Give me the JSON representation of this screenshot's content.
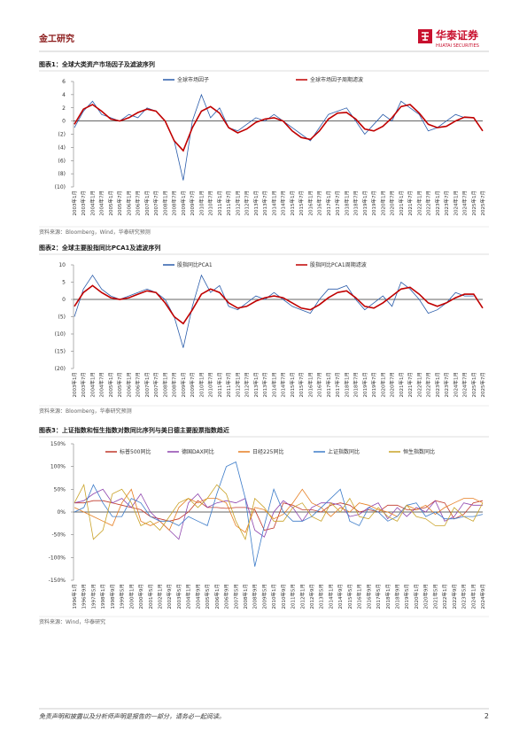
{
  "header": {
    "section": "金工研究",
    "brand": "华泰证券",
    "brand_en": "HUATAI SECURITIES"
  },
  "chart_data": [
    {
      "type": "line",
      "title": "图表1：全球大类资产市场因子及滤波序列",
      "source": "资料来源：Bloomberg，Wind，华泰研究预测",
      "categories": [
        "2003年1月",
        "2003年7月",
        "2004年1月",
        "2004年7月",
        "2005年1月",
        "2005年7月",
        "2006年1月",
        "2006年7月",
        "2007年1月",
        "2007年7月",
        "2008年1月",
        "2008年7月",
        "2009年1月",
        "2009年7月",
        "2010年1月",
        "2010年7月",
        "2011年1月",
        "2011年7月",
        "2012年1月",
        "2012年7月",
        "2013年1月",
        "2013年7月",
        "2014年1月",
        "2014年7月",
        "2015年1月",
        "2015年7月",
        "2016年1月",
        "2016年7月",
        "2017年1月",
        "2017年7月",
        "2018年1月",
        "2018年7月",
        "2019年1月",
        "2019年7月",
        "2020年1月",
        "2020年7月",
        "2021年1月",
        "2021年7月",
        "2022年1月",
        "2022年7月",
        "2023年1月",
        "2023年7月",
        "2024年1月",
        "2024年7月",
        "2025年1月",
        "2025年7月"
      ],
      "series": [
        {
          "name": "全球市场因子",
          "color": "#2a5caa",
          "values": [
            -1,
            1.5,
            3,
            1,
            0.5,
            0,
            1,
            0.5,
            2,
            1.5,
            0,
            -3,
            -9,
            0,
            4,
            0.5,
            2,
            -1,
            -1.5,
            -0.5,
            0.5,
            0,
            1,
            0,
            -1,
            -2,
            -3,
            -1,
            1,
            1.5,
            2,
            0,
            -2,
            -0.5,
            1,
            0,
            3,
            2,
            1,
            -1.5,
            -1,
            0,
            1,
            0.5,
            0.5,
            null
          ]
        },
        {
          "name": "全球市场因子周期滤波",
          "color": "#c00000",
          "values": [
            -0.5,
            1.8,
            2.5,
            1.5,
            0.3,
            0,
            0.5,
            1.3,
            1.8,
            1.5,
            0,
            -3,
            -4.5,
            -1,
            1.5,
            2.2,
            1.2,
            -1,
            -1.8,
            -1.2,
            -0.2,
            0.3,
            0.5,
            0,
            -1.5,
            -2.5,
            -2.8,
            -1.5,
            0.3,
            1.2,
            1.3,
            0.3,
            -1.2,
            -1.5,
            -0.8,
            0.5,
            2.2,
            2.5,
            1.2,
            -0.5,
            -1,
            -0.8,
            0,
            0.6,
            0.5,
            -1.5
          ]
        }
      ],
      "ylim": [
        -10,
        6
      ],
      "yticks": [
        6,
        4,
        2,
        0,
        {
          "value": -2,
          "label": "(2)"
        },
        {
          "value": -4,
          "label": "(4)"
        },
        {
          "value": -6,
          "label": "(6)"
        },
        {
          "value": -8,
          "label": "(8)"
        },
        {
          "value": -10,
          "label": "(10)"
        }
      ]
    },
    {
      "type": "line",
      "title": "图表2：全球主要股指同比PCA1及滤波序列",
      "source": "资料来源：Bloomberg，华泰研究预测",
      "categories": [
        "2003年1月",
        "2003年7月",
        "2004年1月",
        "2004年7月",
        "2005年1月",
        "2005年7月",
        "2006年1月",
        "2006年7月",
        "2007年1月",
        "2007年7月",
        "2008年1月",
        "2008年7月",
        "2009年1月",
        "2009年7月",
        "2010年1月",
        "2010年7月",
        "2011年1月",
        "2011年7月",
        "2012年1月",
        "2012年7月",
        "2013年1月",
        "2013年7月",
        "2014年1月",
        "2014年7月",
        "2015年1月",
        "2015年7月",
        "2016年1月",
        "2016年7月",
        "2017年1月",
        "2017年7月",
        "2018年1月",
        "2018年7月",
        "2019年1月",
        "2019年7月",
        "2020年1月",
        "2020年7月",
        "2021年1月",
        "2021年7月",
        "2022年1月",
        "2022年7月",
        "2023年1月",
        "2023年7月",
        "2024年1月",
        "2024年7月",
        "2025年1月",
        "2025年7月"
      ],
      "series": [
        {
          "name": "股指同比PCA1",
          "color": "#2a5caa",
          "values": [
            -5,
            3,
            7,
            3,
            1,
            0,
            1,
            2,
            3,
            2,
            0,
            -5,
            -14,
            -2,
            7,
            2,
            4,
            -2,
            -3,
            -1,
            1,
            0,
            2,
            0,
            -2,
            -3,
            -4,
            0,
            3,
            3,
            4,
            0,
            -3,
            -1,
            1,
            -2,
            5,
            3,
            0,
            -4,
            -3,
            -1,
            2,
            1,
            1,
            null
          ]
        },
        {
          "name": "股指同比PCA1周期滤波",
          "color": "#c00000",
          "values": [
            -2,
            2,
            4,
            2,
            0.5,
            0,
            0.5,
            1.5,
            2.5,
            2,
            -1,
            -5,
            -7,
            -3,
            1.5,
            3,
            2,
            -1,
            -2.5,
            -2,
            -0.5,
            0.5,
            1,
            0.5,
            -1,
            -2.5,
            -3,
            -1.5,
            0.5,
            2,
            2.5,
            0.5,
            -2,
            -2.5,
            -1,
            1,
            3,
            3.5,
            1.5,
            -1,
            -2,
            -1,
            0.5,
            1.5,
            1.5,
            -2.5
          ]
        }
      ],
      "ylim": [
        -20,
        10
      ],
      "yticks": [
        10,
        5,
        0,
        {
          "value": -5,
          "label": "(5)"
        },
        {
          "value": -10,
          "label": "(10)"
        },
        {
          "value": -15,
          "label": "(15)"
        },
        {
          "value": -20,
          "label": "(20)"
        }
      ]
    },
    {
      "type": "line",
      "title": "图表3：上证指数和恒生指数对数同比序列与美日德主要股票指数趋近",
      "source": "资料来源：Wind，华泰研究",
      "categories": [
        "1996年1月",
        "1996年9月",
        "1997年5月",
        "1998年1月",
        "1998年9月",
        "1999年5月",
        "2000年1月",
        "2000年9月",
        "2001年5月",
        "2002年1月",
        "2002年9月",
        "2003年5月",
        "2004年1月",
        "2004年9月",
        "2005年5月",
        "2006年1月",
        "2006年9月",
        "2007年5月",
        "2008年1月",
        "2008年9月",
        "2009年5月",
        "2010年1月",
        "2010年9月",
        "2011年5月",
        "2012年1月",
        "2012年9月",
        "2013年5月",
        "2014年1月",
        "2014年9月",
        "2015年5月",
        "2016年1月",
        "2016年9月",
        "2017年5月",
        "2018年1月",
        "2018年9月",
        "2019年5月",
        "2020年1月",
        "2020年9月",
        "2021年5月",
        "2022年1月",
        "2022年9月",
        "2023年5月",
        "2024年1月",
        "2024年9月"
      ],
      "series": [
        {
          "name": "标普500同比",
          "color": "#c0392b",
          "values": [
            20,
            20,
            25,
            25,
            20,
            15,
            10,
            5,
            -10,
            -15,
            -20,
            -15,
            0,
            25,
            10,
            10,
            8,
            10,
            10,
            5,
            -40,
            -35,
            20,
            15,
            5,
            5,
            0,
            15,
            20,
            15,
            0,
            5,
            0,
            15,
            15,
            5,
            5,
            10,
            25,
            20,
            -15,
            -5,
            20,
            25
          ]
        },
        {
          "name": "德国DAX同比",
          "color": "#8e44ad",
          "values": [
            20,
            25,
            40,
            50,
            20,
            30,
            10,
            40,
            0,
            -20,
            -40,
            -60,
            20,
            40,
            10,
            20,
            25,
            20,
            30,
            -40,
            -55,
            0,
            25,
            10,
            -20,
            10,
            20,
            20,
            15,
            -10,
            -5,
            10,
            20,
            -15,
            10,
            -10,
            10,
            0,
            25,
            -20,
            -10,
            20,
            15,
            15
          ]
        },
        {
          "name": "日经225同比",
          "color": "#e67e22",
          "values": [
            10,
            0,
            -10,
            -20,
            -30,
            20,
            50,
            -20,
            -30,
            -20,
            -40,
            10,
            30,
            20,
            30,
            30,
            20,
            -30,
            -45,
            10,
            5,
            -15,
            -5,
            20,
            50,
            20,
            10,
            -10,
            10,
            0,
            20,
            15,
            5,
            0,
            -10,
            15,
            5,
            15,
            -5,
            10,
            20,
            30,
            30,
            20
          ]
        },
        {
          "name": "上证指数同比",
          "color": "#3d7cc9",
          "values": [
            0,
            10,
            60,
            20,
            -10,
            -10,
            30,
            20,
            -10,
            -20,
            -20,
            -30,
            -10,
            -20,
            -30,
            40,
            100,
            110,
            30,
            -120,
            -30,
            50,
            0,
            -20,
            -20,
            -10,
            10,
            30,
            50,
            -20,
            -30,
            10,
            0,
            -20,
            -10,
            15,
            20,
            -10,
            0,
            -15,
            -15,
            -10,
            -10,
            -5
          ]
        },
        {
          "name": "恒生指数同比",
          "color": "#c9a227",
          "values": [
            20,
            60,
            -60,
            -40,
            40,
            50,
            20,
            -30,
            -20,
            -40,
            -10,
            20,
            30,
            10,
            30,
            60,
            40,
            -20,
            -60,
            30,
            10,
            -20,
            -20,
            10,
            20,
            -10,
            -20,
            20,
            0,
            30,
            -10,
            -15,
            10,
            -10,
            -20,
            15,
            -10,
            -15,
            -30,
            -30,
            10,
            -10,
            -20,
            20
          ]
        }
      ],
      "ylim": [
        -150,
        150
      ],
      "yticks": [
        {
          "value": 150,
          "label": "150%"
        },
        {
          "value": 100,
          "label": "100%"
        },
        {
          "value": 50,
          "label": "50%"
        },
        {
          "value": 0,
          "label": "0%"
        },
        {
          "value": -50,
          "label": "-50%"
        },
        {
          "value": -100,
          "label": "-100%"
        },
        {
          "value": -150,
          "label": "-150%"
        }
      ]
    }
  ],
  "footer": {
    "disclaimer": "免责声明和披露以及分析师声明是报告的一部分，请务必一起阅读。",
    "page": "2"
  }
}
